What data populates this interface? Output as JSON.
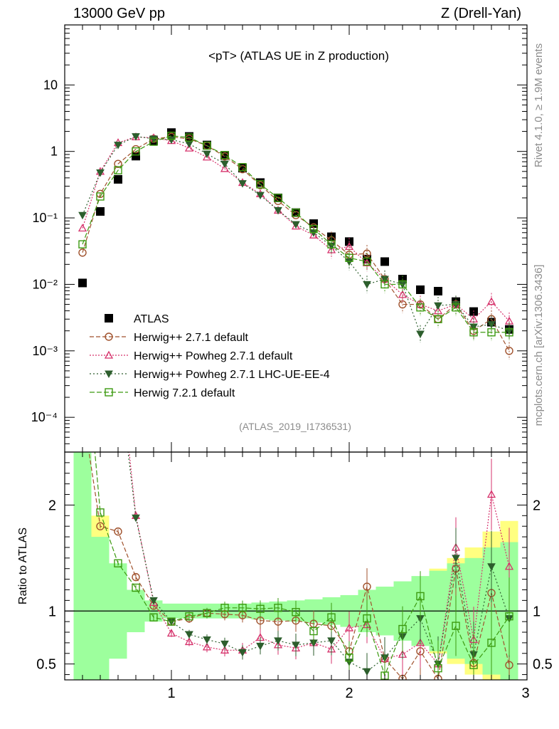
{
  "header": {
    "left": "13000 GeV pp",
    "right": "Z (Drell-Yan)"
  },
  "side": {
    "rivet": "Rivet 4.1.0, ≥ 1.9M events",
    "mcplots": "mcplots.cern.ch [arXiv:1306.3436]"
  },
  "chart_data": {
    "type": "line",
    "title": "<pT> (ATLAS UE in Z production)",
    "analysis_tag": "(ATLAS_2019_I1736531)",
    "x_range": [
      0.4,
      3.0
    ],
    "x_ticks": [
      "1",
      "2",
      "3"
    ],
    "y_scale": "log",
    "y_range": [
      3e-05,
      80
    ],
    "y_ticks": [
      {
        "v": 10,
        "label": "10"
      },
      {
        "v": 1,
        "label": "1"
      },
      {
        "v": 0.1,
        "label": "10⁻¹"
      },
      {
        "v": 0.01,
        "label": "10⁻²"
      },
      {
        "v": 0.001,
        "label": "10⁻³"
      },
      {
        "v": 0.0001,
        "label": "10⁻⁴"
      }
    ],
    "ratio_ylabel": "Ratio to ATLAS",
    "ratio_range": [
      0.35,
      2.5
    ],
    "ratio_ticks": [
      "0.5",
      "1",
      "2"
    ],
    "ratio_tick_values": [
      0.5,
      1,
      2
    ],
    "colors": {
      "atlas": "#000000",
      "herwig271": "#a0522d",
      "powheg": "#d6336c",
      "powheg_ee4": "#2d5e2d",
      "herwig721": "#3c9a10",
      "band_inner": "#9dff9d",
      "band_outer": "#ffff80"
    },
    "x": [
      0.5,
      0.6,
      0.7,
      0.8,
      0.9,
      1.0,
      1.1,
      1.2,
      1.3,
      1.4,
      1.5,
      1.6,
      1.7,
      1.8,
      1.9,
      2.0,
      2.1,
      2.2,
      2.3,
      2.4,
      2.5,
      2.6,
      2.7,
      2.8,
      2.9
    ],
    "bands": {
      "inner": [
        1.8,
        0.7,
        0.45,
        0.2,
        0.1,
        0.07,
        0.07,
        0.07,
        0.07,
        0.07,
        0.08,
        0.09,
        0.1,
        0.11,
        0.13,
        0.15,
        0.2,
        0.23,
        0.28,
        0.33,
        0.38,
        0.45,
        0.5,
        0.6,
        0.65
      ],
      "outer": [
        2.5,
        0.9,
        0.15,
        0.1,
        0.06,
        0.04,
        0.04,
        0.04,
        0.04,
        0.04,
        0.05,
        0.06,
        0.07,
        0.08,
        0.1,
        0.12,
        0.15,
        0.2,
        0.25,
        0.3,
        0.4,
        0.5,
        0.6,
        0.75,
        0.85
      ]
    },
    "series": [
      {
        "name": "ATLAS",
        "key": "atlas",
        "values": [
          0.0105,
          0.125,
          0.38,
          0.85,
          1.45,
          1.92,
          1.68,
          1.25,
          0.87,
          0.56,
          0.34,
          0.2,
          0.12,
          0.082,
          0.052,
          0.044,
          0.024,
          0.022,
          0.012,
          0.0083,
          0.0079,
          0.0055,
          0.0039,
          0.0027,
          0.0021
        ],
        "ratio": []
      },
      {
        "name": "Herwig++ 2.7.1 default",
        "key": "herwig271",
        "values": [
          0.03,
          0.23,
          0.65,
          1.08,
          1.55,
          1.65,
          1.55,
          1.22,
          0.84,
          0.54,
          0.31,
          0.18,
          0.11,
          0.072,
          0.046,
          0.028,
          0.029,
          0.012,
          0.005,
          0.005,
          0.003,
          0.005,
          0.002,
          0.003,
          0.001
        ],
        "ratio": [
          2.9,
          1.8,
          1.75,
          1.32,
          1.05,
          0.9,
          0.93,
          0.98,
          0.97,
          0.96,
          0.91,
          0.9,
          0.91,
          0.88,
          0.86,
          0.62,
          1.23,
          0.55,
          0.36,
          0.62,
          0.36,
          1.4,
          0.51,
          1.17,
          0.49
        ]
      },
      {
        "name": "Herwig++ Powheg 2.7.1 default",
        "key": "powheg",
        "values": [
          0.07,
          0.5,
          1.35,
          1.65,
          1.6,
          1.45,
          1.12,
          0.82,
          0.55,
          0.34,
          0.23,
          0.13,
          0.075,
          0.055,
          0.033,
          0.037,
          0.021,
          0.012,
          0.007,
          0.005,
          0.004,
          0.005,
          0.003,
          0.0055,
          0.0028
        ],
        "ratio": [
          6.5,
          4.0,
          3.5,
          1.9,
          1.08,
          0.79,
          0.71,
          0.66,
          0.63,
          0.63,
          0.75,
          0.68,
          0.65,
          0.7,
          0.64,
          0.84,
          0.87,
          0.55,
          0.59,
          0.7,
          0.5,
          1.6,
          0.73,
          2.1,
          1.42
        ]
      },
      {
        "name": "Herwig++ Powheg 2.7.1 LHC-UE-EE-4",
        "key": "powheg_ee4",
        "values": [
          0.11,
          0.48,
          1.25,
          1.68,
          1.55,
          1.5,
          1.3,
          0.92,
          0.65,
          0.33,
          0.22,
          0.13,
          0.08,
          0.06,
          0.038,
          0.022,
          0.01,
          0.012,
          0.01,
          0.0018,
          0.0048,
          0.005,
          0.0023,
          0.0025,
          0.002
        ],
        "ratio": [
          10.5,
          3.8,
          3.3,
          1.88,
          1.1,
          0.9,
          0.78,
          0.73,
          0.69,
          0.61,
          0.67,
          0.72,
          0.68,
          0.7,
          0.72,
          0.52,
          0.43,
          0.56,
          0.76,
          0.93,
          0.5,
          1.5,
          0.59,
          1.42,
          0.93
        ]
      },
      {
        "name": "Herwig 7.2.1 default",
        "key": "herwig721",
        "values": [
          0.04,
          0.21,
          0.52,
          1.0,
          1.4,
          1.72,
          1.62,
          1.22,
          0.88,
          0.58,
          0.32,
          0.2,
          0.12,
          0.068,
          0.04,
          0.025,
          0.022,
          0.01,
          0.01,
          0.0045,
          0.003,
          0.0045,
          0.0019,
          0.0019,
          0.0019
        ],
        "ratio": [
          3.8,
          1.93,
          1.45,
          1.22,
          0.94,
          0.9,
          0.95,
          0.98,
          1.03,
          1.03,
          1.02,
          1.03,
          0.99,
          0.81,
          0.94,
          0.56,
          0.93,
          0.39,
          0.83,
          1.14,
          0.46,
          0.86,
          0.49,
          0.7,
          0.95
        ]
      }
    ]
  }
}
